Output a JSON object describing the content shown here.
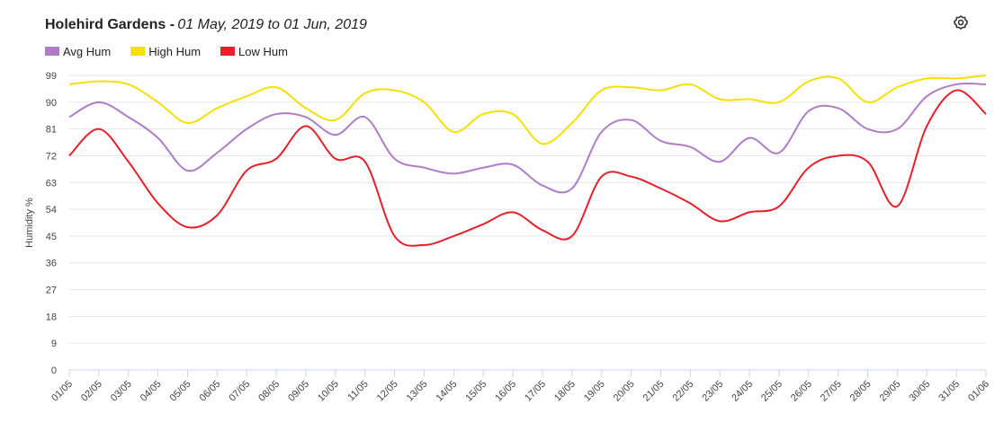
{
  "chart_data": {
    "type": "line",
    "title": "Holehird Gardens -",
    "subtitle": "01 May, 2019 to 01 Jun, 2019",
    "y_label": "Humidity %",
    "categories": [
      "01/05",
      "02/05",
      "03/05",
      "04/05",
      "05/05",
      "06/05",
      "07/05",
      "08/05",
      "09/05",
      "10/05",
      "11/05",
      "12/05",
      "13/05",
      "14/05",
      "15/05",
      "16/05",
      "17/05",
      "18/05",
      "19/05",
      "20/05",
      "21/05",
      "22/05",
      "23/05",
      "24/05",
      "25/05",
      "26/05",
      "27/05",
      "28/05",
      "29/05",
      "30/05",
      "31/05",
      "01/06"
    ],
    "series": [
      {
        "name": "Avg Hum",
        "color": "#b07cc6",
        "values": [
          85,
          90,
          85,
          78,
          67,
          73,
          81,
          86,
          85,
          79,
          85,
          71,
          68,
          66,
          68,
          69,
          62,
          61,
          80,
          84,
          77,
          75,
          70,
          78,
          73,
          87,
          88,
          81,
          81,
          92,
          96,
          96
        ]
      },
      {
        "name": "High Hum",
        "color": "#f5e000",
        "values": [
          96,
          97,
          96,
          90,
          83,
          88,
          92,
          95,
          88,
          84,
          93,
          94,
          90,
          80,
          86,
          86,
          76,
          83,
          94,
          95,
          94,
          96,
          91,
          91,
          90,
          97,
          98,
          90,
          95,
          98,
          98,
          99
        ]
      },
      {
        "name": "Low Hum",
        "color": "#e8202a",
        "values": [
          72,
          81,
          70,
          56,
          48,
          52,
          67,
          71,
          82,
          71,
          70,
          45,
          42,
          45,
          49,
          53,
          47,
          45,
          65,
          65,
          61,
          56,
          50,
          53,
          55,
          68,
          72,
          70,
          55,
          82,
          94,
          86
        ]
      }
    ],
    "ylim": [
      0,
      99
    ],
    "yticks": [
      0,
      9,
      18,
      27,
      36,
      45,
      54,
      63,
      72,
      81,
      90,
      99
    ],
    "grid": true,
    "legend": "top-left"
  }
}
